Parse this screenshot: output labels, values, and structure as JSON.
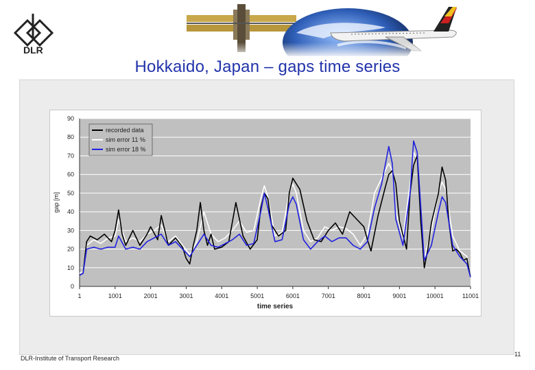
{
  "slide": {
    "logo_text": "DLR",
    "title": "Hokkaido, Japan – gaps time series",
    "footer": "DLR-Institute of Transport Research",
    "page_number": "11"
  },
  "icons": {
    "logo": "dlr-logo-icon",
    "header": "space-station-globe-airplane-banner"
  },
  "chart_data": {
    "type": "line",
    "xlabel": "time series",
    "ylabel": "gap [m]",
    "xlim": [
      1,
      11001
    ],
    "ylim": [
      0,
      90
    ],
    "x_ticks": [
      "1",
      "1001",
      "2001",
      "3001",
      "4001",
      "5001",
      "6001",
      "7001",
      "8001",
      "9001",
      "10001",
      "11001"
    ],
    "y_ticks": [
      "0",
      "10",
      "20",
      "30",
      "40",
      "50",
      "60",
      "70",
      "80",
      "90"
    ],
    "plot_background": "#c0c0c0",
    "grid": true,
    "legend_position": "top-left",
    "series": [
      {
        "name": "recorded data",
        "color": "#000000",
        "x": [
          1,
          100,
          200,
          300,
          500,
          700,
          900,
          1000,
          1100,
          1200,
          1300,
          1500,
          1700,
          1900,
          2000,
          2200,
          2300,
          2500,
          2700,
          2900,
          3000,
          3100,
          3200,
          3300,
          3400,
          3500,
          3600,
          3700,
          3800,
          4000,
          4200,
          4400,
          4600,
          4800,
          5000,
          5100,
          5200,
          5300,
          5400,
          5600,
          5800,
          5900,
          6000,
          6200,
          6400,
          6600,
          6800,
          7000,
          7200,
          7400,
          7600,
          7800,
          8000,
          8100,
          8200,
          8400,
          8600,
          8700,
          8800,
          8900,
          9000,
          9200,
          9300,
          9400,
          9500,
          9600,
          9700,
          9800,
          9900,
          10000,
          10100,
          10200,
          10300,
          10400,
          10500,
          10600,
          10700,
          10800,
          10900,
          11000
        ],
        "y": [
          6,
          7,
          24,
          27,
          25,
          28,
          24,
          30,
          41,
          28,
          22,
          30,
          22,
          28,
          32,
          25,
          38,
          22,
          26,
          21,
          15,
          12,
          22,
          30,
          45,
          30,
          22,
          28,
          20,
          21,
          24,
          45,
          27,
          20,
          25,
          42,
          50,
          47,
          33,
          27,
          30,
          50,
          58,
          52,
          35,
          25,
          24,
          30,
          34,
          28,
          40,
          36,
          32,
          25,
          19,
          38,
          53,
          60,
          62,
          55,
          35,
          20,
          50,
          65,
          70,
          35,
          10,
          20,
          34,
          42,
          50,
          64,
          57,
          33,
          19,
          20,
          18,
          14,
          15,
          5
        ]
      },
      {
        "name": "sim error 11 %",
        "color": "#ffffff",
        "x": [
          1,
          100,
          200,
          400,
          600,
          800,
          1000,
          1100,
          1300,
          1500,
          1700,
          1900,
          2100,
          2300,
          2500,
          2700,
          2900,
          3100,
          3300,
          3500,
          3700,
          3900,
          4100,
          4300,
          4500,
          4700,
          4900,
          5100,
          5200,
          5300,
          5500,
          5700,
          5900,
          6000,
          6100,
          6300,
          6500,
          6700,
          6900,
          7100,
          7300,
          7500,
          7700,
          7900,
          8100,
          8300,
          8500,
          8700,
          8800,
          8900,
          9100,
          9300,
          9400,
          9500,
          9700,
          9900,
          10100,
          10200,
          10300,
          10500,
          10700,
          10900,
          11000
        ],
        "y": [
          7,
          8,
          22,
          25,
          23,
          26,
          27,
          36,
          24,
          26,
          24,
          28,
          30,
          33,
          24,
          27,
          22,
          17,
          24,
          40,
          28,
          24,
          26,
          30,
          35,
          29,
          30,
          47,
          54,
          48,
          27,
          29,
          50,
          55,
          50,
          30,
          24,
          26,
          32,
          30,
          32,
          31,
          28,
          22,
          28,
          50,
          58,
          66,
          62,
          40,
          26,
          55,
          72,
          68,
          15,
          30,
          50,
          56,
          52,
          27,
          19,
          16,
          6
        ]
      },
      {
        "name": "sim error 18 %",
        "color": "#2020e0",
        "x": [
          1,
          100,
          200,
          400,
          600,
          800,
          1000,
          1100,
          1300,
          1500,
          1700,
          1900,
          2100,
          2300,
          2500,
          2700,
          2900,
          3100,
          3300,
          3500,
          3700,
          3900,
          4100,
          4300,
          4500,
          4700,
          4900,
          5100,
          5200,
          5300,
          5500,
          5700,
          5900,
          6000,
          6100,
          6300,
          6500,
          6700,
          6900,
          7100,
          7300,
          7500,
          7700,
          7900,
          8100,
          8300,
          8500,
          8700,
          8800,
          8900,
          9100,
          9300,
          9400,
          9500,
          9700,
          9900,
          10100,
          10200,
          10300,
          10500,
          10700,
          10900,
          11000
        ],
        "y": [
          6,
          7,
          20,
          21,
          20,
          21,
          21,
          27,
          20,
          21,
          20,
          24,
          26,
          28,
          22,
          24,
          20,
          16,
          22,
          28,
          22,
          21,
          23,
          25,
          28,
          22,
          23,
          40,
          50,
          42,
          24,
          25,
          44,
          48,
          44,
          25,
          20,
          24,
          27,
          24,
          26,
          26,
          22,
          20,
          24,
          42,
          55,
          75,
          66,
          36,
          22,
          50,
          78,
          72,
          14,
          22,
          40,
          48,
          45,
          22,
          16,
          12,
          5
        ]
      }
    ]
  }
}
